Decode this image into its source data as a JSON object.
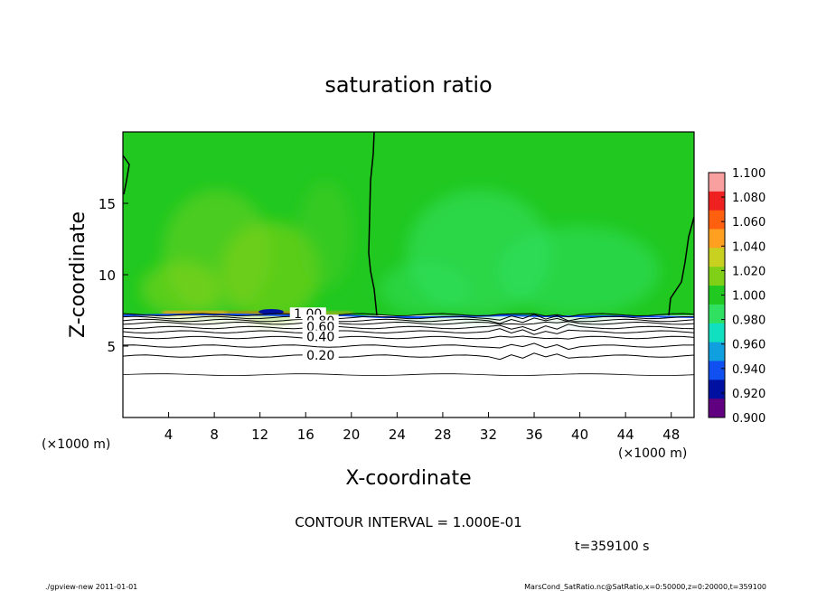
{
  "chart_data": {
    "type": "heatmap",
    "title": "saturation ratio",
    "xlabel": "X-coordinate",
    "ylabel": "Z-coordinate",
    "x_unit": "(×1000 m)",
    "y_unit": "(×1000 m)",
    "xlim": [
      0,
      50
    ],
    "ylim": [
      0,
      20
    ],
    "x_ticks": [
      4,
      8,
      12,
      16,
      20,
      24,
      28,
      32,
      36,
      40,
      44,
      48
    ],
    "y_ticks": [
      5,
      10,
      15
    ],
    "contour_interval": "CONTOUR INTERVAL = 1.000E-01",
    "time_label": "t=359100 s",
    "contour_labels": [
      {
        "text": "1.00",
        "x": 16.2,
        "z": 7.2
      },
      {
        "text": "0.80",
        "x": 17.3,
        "z": 6.7
      },
      {
        "text": "0.60",
        "x": 17.3,
        "z": 6.3
      },
      {
        "text": "0.40",
        "x": 17.3,
        "z": 5.6
      },
      {
        "text": "0.20",
        "x": 17.3,
        "z": 4.3
      }
    ],
    "contour_levels_z": [
      4.3,
      5.0,
      5.6,
      6.0,
      6.3,
      6.6,
      6.8,
      7.0,
      7.2
    ],
    "colorbar": {
      "ticks": [
        "1.100",
        "1.080",
        "1.060",
        "1.040",
        "1.020",
        "1.000",
        "0.980",
        "0.960",
        "0.940",
        "0.920",
        "0.900"
      ],
      "colors": [
        "#f8a0a0",
        "#ee2020",
        "#ff6010",
        "#ffa020",
        "#c8d020",
        "#80d018",
        "#20c820",
        "#30e060",
        "#10e0c0",
        "#10a0e0",
        "#1050f0",
        "#0010a0",
        "#600080"
      ]
    }
  },
  "footer": {
    "left": "./gpview-new   2011-01-01",
    "right": "MarsCond_SatRatio.nc@SatRatio,x=0:50000,z=0:20000,t=359100"
  }
}
